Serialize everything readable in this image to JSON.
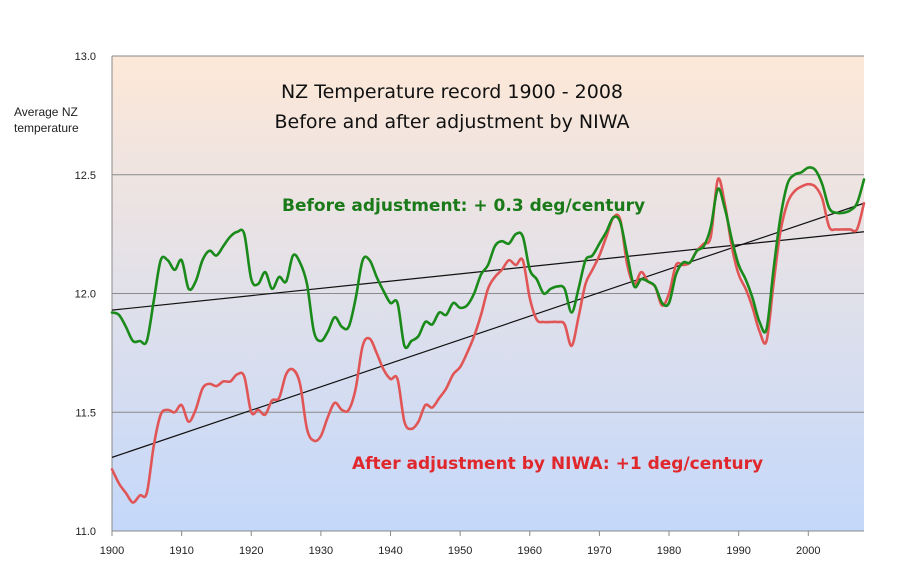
{
  "chart_data": {
    "type": "line",
    "title_line1": "NZ Temperature record 1900 - 2008",
    "title_line2": "Before and after adjustment by NIWA",
    "ylabel_line1": "Average NZ",
    "ylabel_line2": "temperature",
    "xlim": [
      1900,
      2008
    ],
    "ylim": [
      11.0,
      13.0
    ],
    "x_ticks": [
      "1900",
      "1910",
      "1920",
      "1930",
      "1940",
      "1950",
      "1960",
      "1970",
      "1980",
      "1990",
      "2000"
    ],
    "y_ticks": [
      "11.0",
      "11.5",
      "12.0",
      "12.5",
      "13.0"
    ],
    "grid": "horizontal",
    "background": {
      "top": "#fde8d8",
      "bottom": "#c4d8fb"
    },
    "annotations": [
      {
        "text": "Before adjustment: + 0.3 deg/century",
        "color": "#1a7a1a",
        "series": "before"
      },
      {
        "text": "After adjustment by NIWA: +1 deg/century",
        "color": "#e0282c",
        "series": "after"
      }
    ],
    "series": [
      {
        "key": "before",
        "color": "#1a8a1a",
        "x": [
          1900,
          1901,
          1902,
          1903,
          1904,
          1905,
          1906,
          1907,
          1908,
          1909,
          1910,
          1911,
          1912,
          1913,
          1914,
          1915,
          1916,
          1917,
          1918,
          1919,
          1920,
          1921,
          1922,
          1923,
          1924,
          1925,
          1926,
          1927,
          1928,
          1929,
          1930,
          1931,
          1932,
          1933,
          1934,
          1935,
          1936,
          1937,
          1938,
          1939,
          1940,
          1941,
          1942,
          1943,
          1944,
          1945,
          1946,
          1947,
          1948,
          1949,
          1950,
          1951,
          1952,
          1953,
          1954,
          1955,
          1956,
          1957,
          1958,
          1959,
          1960,
          1961,
          1962,
          1963,
          1964,
          1965,
          1966,
          1967,
          1968,
          1969,
          1970,
          1971,
          1972,
          1973,
          1974,
          1975,
          1976,
          1977,
          1978,
          1979,
          1980,
          1981,
          1982,
          1983,
          1984,
          1985,
          1986,
          1987,
          1988,
          1989,
          1990,
          1991,
          1992,
          1993,
          1994,
          1995,
          1996,
          1997,
          1998,
          1999,
          2000,
          2001,
          2002,
          2003,
          2004,
          2005,
          2006,
          2007,
          2008
        ],
        "values": [
          11.92,
          11.91,
          11.86,
          11.8,
          11.8,
          11.8,
          11.97,
          12.14,
          12.14,
          12.1,
          12.14,
          12.02,
          12.05,
          12.14,
          12.18,
          12.16,
          12.2,
          12.24,
          12.26,
          12.25,
          12.06,
          12.04,
          12.09,
          12.02,
          12.07,
          12.05,
          12.16,
          12.13,
          12.04,
          11.84,
          11.8,
          11.84,
          11.9,
          11.86,
          11.86,
          11.98,
          12.14,
          12.14,
          12.07,
          12.01,
          11.96,
          11.96,
          11.78,
          11.8,
          11.82,
          11.88,
          11.87,
          11.92,
          11.91,
          11.96,
          11.94,
          11.95,
          12.0,
          12.08,
          12.12,
          12.2,
          12.22,
          12.21,
          12.25,
          12.24,
          12.1,
          12.06,
          12.0,
          12.02,
          12.03,
          12.02,
          11.92,
          12.02,
          12.14,
          12.16,
          12.21,
          12.26,
          12.32,
          12.3,
          12.16,
          12.03,
          12.06,
          12.05,
          12.03,
          11.96,
          11.96,
          12.08,
          12.13,
          12.13,
          12.18,
          12.2,
          12.28,
          12.44,
          12.36,
          12.23,
          12.12,
          12.06,
          11.98,
          11.88,
          11.85,
          12.1,
          12.32,
          12.46,
          12.5,
          12.51,
          12.53,
          12.52,
          12.46,
          12.36,
          12.34,
          12.34,
          12.35,
          12.38,
          12.48
        ]
      },
      {
        "key": "after",
        "color": "#e05656",
        "x": [
          1900,
          1901,
          1902,
          1903,
          1904,
          1905,
          1906,
          1907,
          1908,
          1909,
          1910,
          1911,
          1912,
          1913,
          1914,
          1915,
          1916,
          1917,
          1918,
          1919,
          1920,
          1921,
          1922,
          1923,
          1924,
          1925,
          1926,
          1927,
          1928,
          1929,
          1930,
          1931,
          1932,
          1933,
          1934,
          1935,
          1936,
          1937,
          1938,
          1939,
          1940,
          1941,
          1942,
          1943,
          1944,
          1945,
          1946,
          1947,
          1948,
          1949,
          1950,
          1951,
          1952,
          1953,
          1954,
          1955,
          1956,
          1957,
          1958,
          1959,
          1960,
          1961,
          1962,
          1963,
          1964,
          1965,
          1966,
          1967,
          1968,
          1969,
          1970,
          1971,
          1972,
          1973,
          1974,
          1975,
          1976,
          1977,
          1978,
          1979,
          1980,
          1981,
          1982,
          1983,
          1984,
          1985,
          1986,
          1987,
          1988,
          1989,
          1990,
          1991,
          1992,
          1993,
          1994,
          1995,
          1996,
          1997,
          1998,
          1999,
          2000,
          2001,
          2002,
          2003,
          2004,
          2005,
          2006,
          2007,
          2008
        ],
        "values": [
          11.26,
          11.2,
          11.16,
          11.12,
          11.15,
          11.16,
          11.36,
          11.49,
          11.51,
          11.5,
          11.53,
          11.46,
          11.51,
          11.6,
          11.62,
          11.61,
          11.63,
          11.63,
          11.66,
          11.65,
          11.5,
          11.51,
          11.49,
          11.55,
          11.56,
          11.66,
          11.68,
          11.62,
          11.43,
          11.38,
          11.4,
          11.48,
          11.54,
          11.51,
          11.51,
          11.6,
          11.78,
          11.81,
          11.75,
          11.68,
          11.64,
          11.64,
          11.46,
          11.43,
          11.46,
          11.53,
          11.52,
          11.56,
          11.6,
          11.66,
          11.69,
          11.75,
          11.82,
          11.91,
          12.02,
          12.07,
          12.1,
          12.14,
          12.12,
          12.14,
          11.98,
          11.89,
          11.88,
          11.88,
          11.88,
          11.87,
          11.78,
          11.9,
          12.04,
          12.1,
          12.16,
          12.24,
          12.32,
          12.31,
          12.12,
          12.04,
          12.09,
          12.05,
          12.03,
          11.95,
          12.0,
          12.12,
          12.12,
          12.13,
          12.18,
          12.21,
          12.24,
          12.48,
          12.38,
          12.2,
          12.08,
          12.02,
          11.94,
          11.84,
          11.8,
          12.04,
          12.26,
          12.38,
          12.43,
          12.45,
          12.46,
          12.45,
          12.4,
          12.28,
          12.27,
          12.27,
          12.27,
          12.27,
          12.38
        ]
      }
    ],
    "trendlines": [
      {
        "key": "before_trend",
        "x": [
          1900,
          2008
        ],
        "values": [
          11.93,
          12.26
        ]
      },
      {
        "key": "after_trend",
        "x": [
          1900,
          2008
        ],
        "values": [
          11.31,
          12.38
        ]
      }
    ]
  }
}
